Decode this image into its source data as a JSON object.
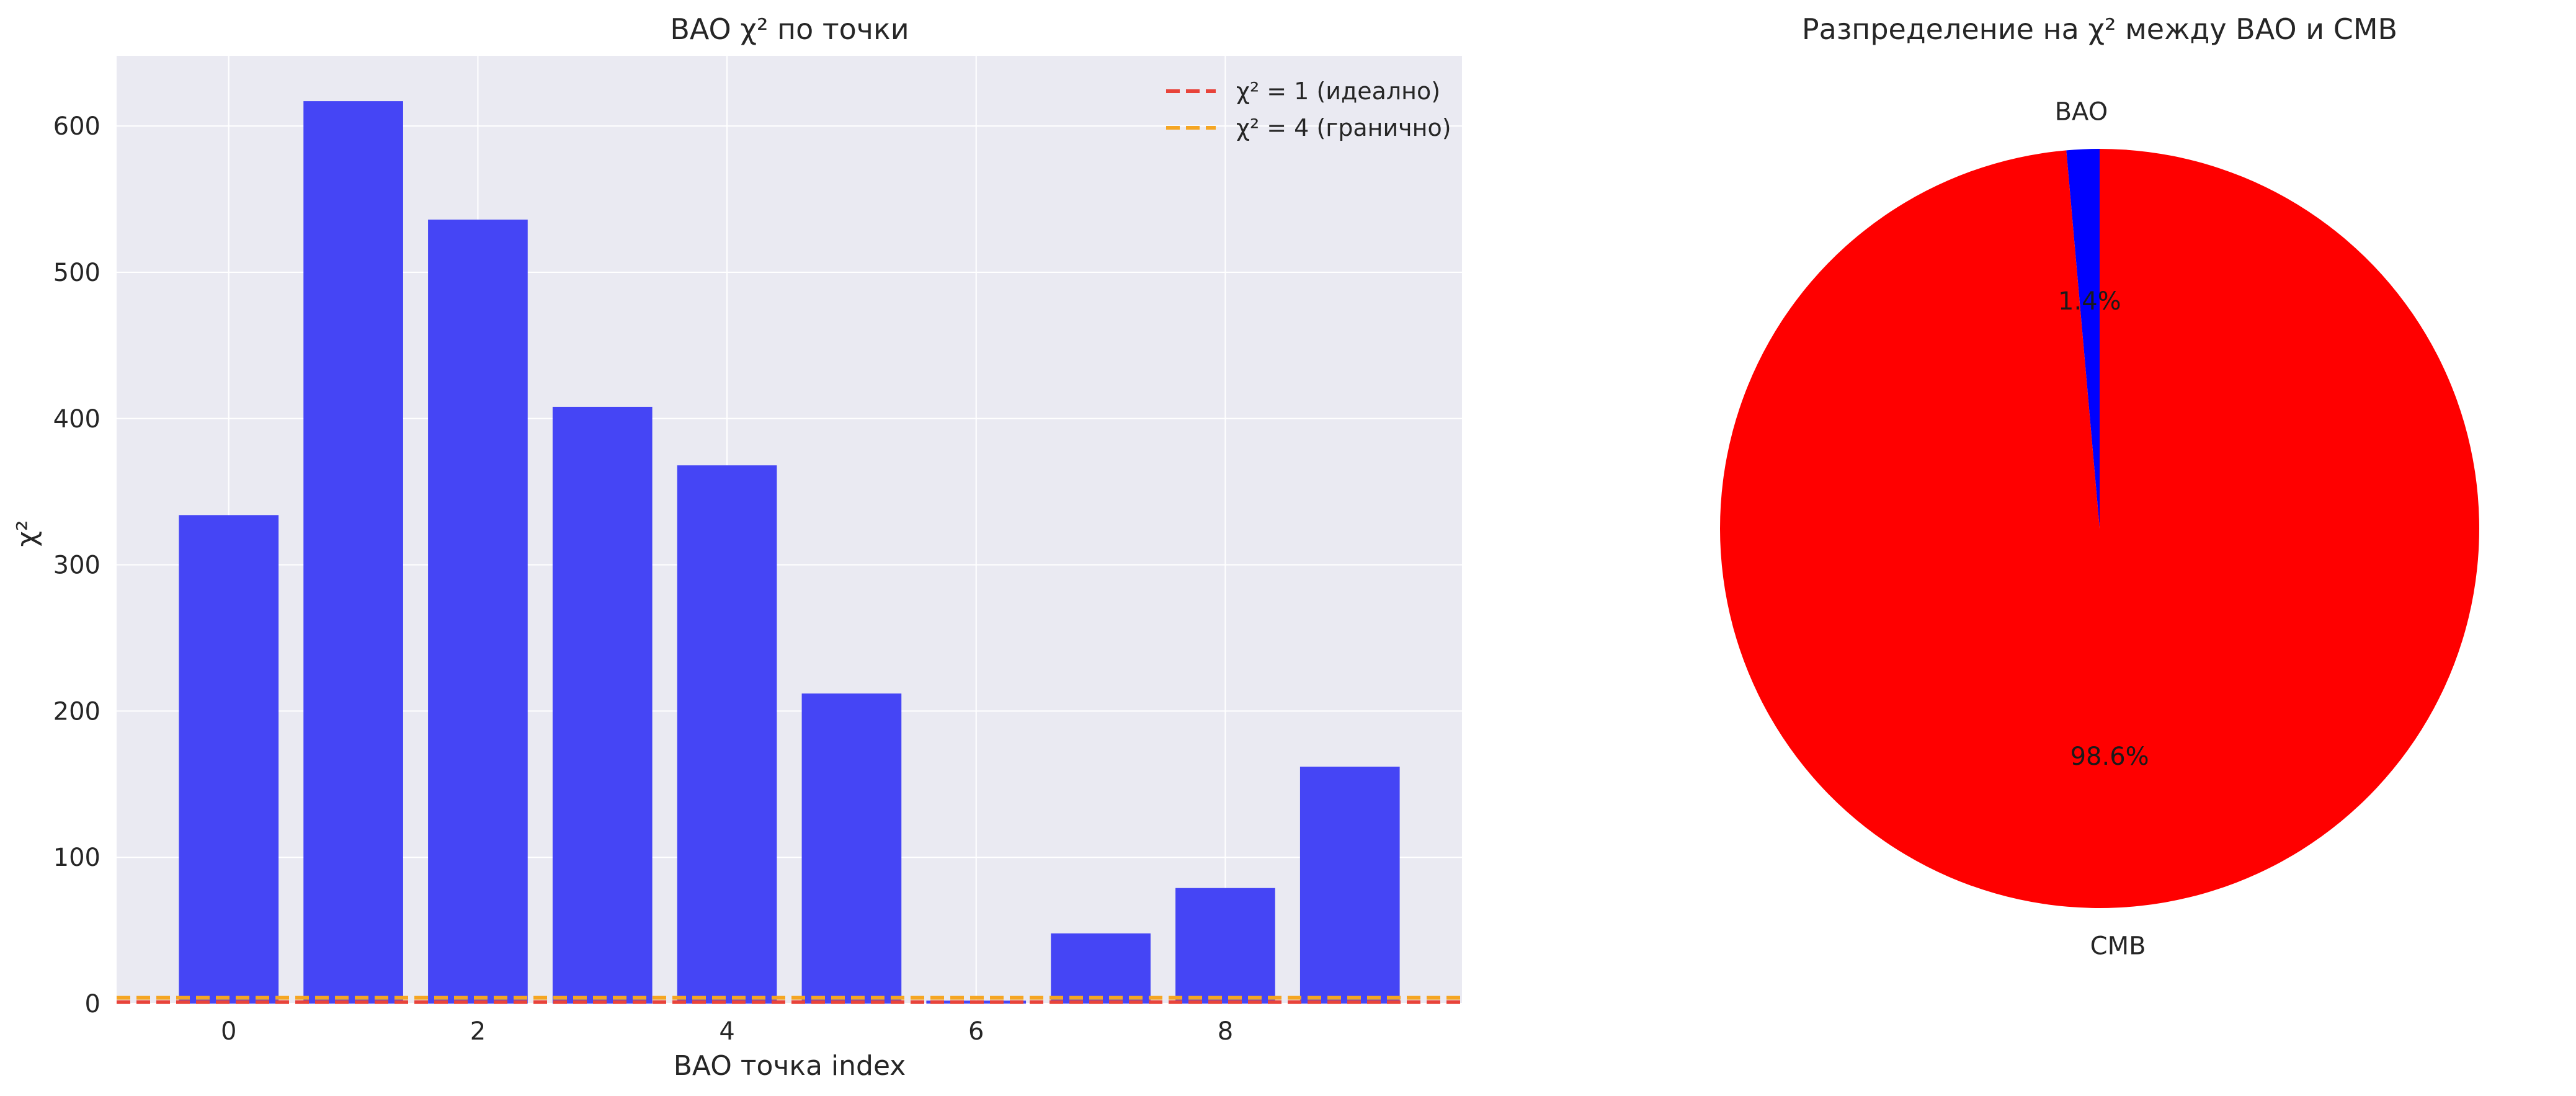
{
  "colors": {
    "bar": "#4545F5",
    "line1": "#E8433A",
    "line4": "#F5A623",
    "axes_bg": "#EAEAF2",
    "grid": "#FFFFFF",
    "pie_bao": "#0000FF",
    "pie_cmb": "#FF0000"
  },
  "chart_data": [
    {
      "type": "bar",
      "title": "BAO χ² по точки",
      "xlabel": "BAO точка index",
      "ylabel": "χ²",
      "x": [
        0,
        1,
        2,
        3,
        4,
        5,
        6,
        7,
        8,
        9
      ],
      "values": [
        334,
        617,
        536,
        408,
        368,
        212,
        2,
        48,
        79,
        162
      ],
      "xlim": [
        -0.9,
        9.9
      ],
      "ylim": [
        0,
        648
      ],
      "xticks": [
        0,
        2,
        4,
        6,
        8
      ],
      "yticks": [
        0,
        100,
        200,
        300,
        400,
        500,
        600
      ],
      "hlines": [
        {
          "name": "χ² = 1 (идеално)",
          "y": 1,
          "style": "dashed",
          "color": "#E8433A"
        },
        {
          "name": "χ² = 4 (гранично)",
          "y": 4,
          "style": "dashed",
          "color": "#F5A623"
        }
      ],
      "legend": "top-right",
      "grid": true
    },
    {
      "type": "pie",
      "title": "Разпределение на χ² между BAO и CMB",
      "labels": [
        "BAO",
        "CMB"
      ],
      "values": [
        1.4,
        98.6
      ],
      "autopct": [
        "1.4%",
        "98.6%"
      ],
      "colors": [
        "#0000FF",
        "#FF0000"
      ],
      "start_angle": 90
    }
  ]
}
